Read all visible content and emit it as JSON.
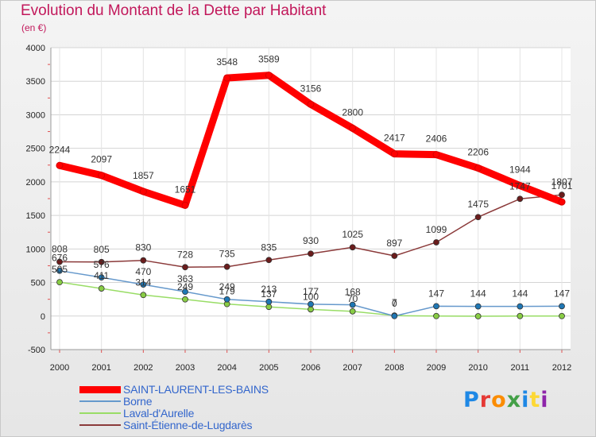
{
  "chart_data": {
    "type": "line",
    "title": "Evolution du Montant de la Dette par Habitant",
    "subtitle": "(en €)",
    "categories": [
      "2000",
      "2001",
      "2002",
      "2003",
      "2004",
      "2005",
      "2006",
      "2007",
      "2008",
      "2009",
      "2010",
      "2011",
      "2012"
    ],
    "ylim": [
      -500,
      4000
    ],
    "yticks": [
      -500,
      0,
      500,
      1000,
      1500,
      2000,
      2500,
      3000,
      3500,
      4000
    ],
    "grid": true,
    "legend_position": "bottom-left",
    "series": [
      {
        "name": "SAINT-LAURENT-LES-BAINS",
        "color": "#ff0000",
        "marker": "#ff0000",
        "values": [
          2244,
          2097,
          1857,
          1651,
          3548,
          3589,
          3156,
          2800,
          2417,
          2406,
          2206,
          1944,
          1701
        ],
        "labels": [
          "2244",
          "2097",
          "1857",
          "1651",
          "3548",
          "3589",
          "3156",
          "2800",
          "2417",
          "2406",
          "2206",
          "1944",
          "1701"
        ]
      },
      {
        "name": "Borne",
        "color": "#6699cc",
        "marker": "#1f77b4",
        "values": [
          676,
          576,
          470,
          363,
          249,
          213,
          177,
          168,
          0,
          147,
          144,
          144,
          147
        ],
        "labels": [
          "676",
          "576",
          "470",
          "363",
          "249",
          "213",
          "177",
          "168",
          "0",
          "147",
          "144",
          "144",
          "147"
        ]
      },
      {
        "name": "Laval-d'Aurelle",
        "color": "#99dd66",
        "marker": "#88cc44",
        "values": [
          505,
          411,
          314,
          249,
          179,
          137,
          100,
          70,
          7,
          0,
          -3,
          0,
          0
        ],
        "labels": [
          "505",
          "411",
          "314",
          "249",
          "179",
          "137",
          "100",
          "70",
          "7",
          "",
          "",
          "",
          ""
        ]
      },
      {
        "name": "Saint-Étienne-de-Lugdarès",
        "color": "#8b3a3a",
        "marker": "#6b1c1c",
        "values": [
          808,
          805,
          830,
          728,
          735,
          835,
          930,
          1025,
          897,
          1099,
          1475,
          1747,
          1807
        ],
        "labels": [
          "808",
          "805",
          "830",
          "728",
          "735",
          "835",
          "930",
          "1025",
          "897",
          "1099",
          "1475",
          "1747",
          "1807"
        ]
      }
    ]
  },
  "logo": {
    "letters": [
      "P",
      "r",
      "o",
      "x",
      "i",
      "t",
      "i"
    ]
  }
}
